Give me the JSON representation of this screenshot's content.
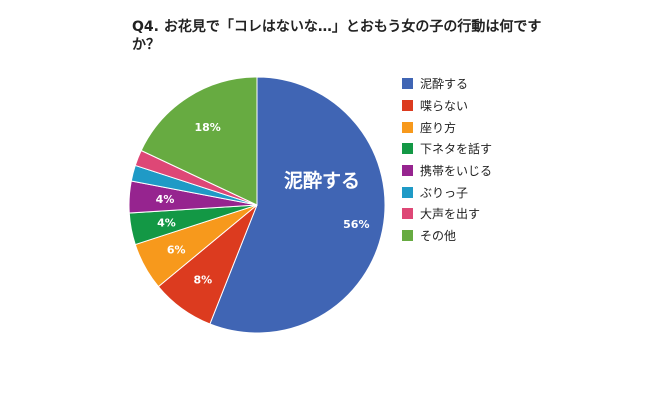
{
  "title": "Q4. お花見で「コレはないな…」とおもう女の子の行動は何ですか？",
  "chart_data": {
    "type": "pie",
    "slices": [
      {
        "label": "泥酔する",
        "value": 56,
        "color": "#4065b4",
        "display": "56%"
      },
      {
        "label": "喋らない",
        "value": 8,
        "color": "#dc3b1f",
        "display": "8%"
      },
      {
        "label": "座り方",
        "value": 6,
        "color": "#f7991c",
        "display": "6%"
      },
      {
        "label": "下ネタを話す",
        "value": 4,
        "color": "#139845",
        "display": "4%"
      },
      {
        "label": "携帯をいじる",
        "value": 4,
        "color": "#96248f",
        "display": "4%"
      },
      {
        "label": "ぶりっ子",
        "value": 2,
        "color": "#1f9ac6",
        "display": ""
      },
      {
        "label": "大声を出す",
        "value": 2,
        "color": "#de4776",
        "display": ""
      },
      {
        "label": "その他",
        "value": 18,
        "color": "#67ab41",
        "display": "18%"
      }
    ],
    "annotation": "泥酔する",
    "legend_position": "right"
  }
}
